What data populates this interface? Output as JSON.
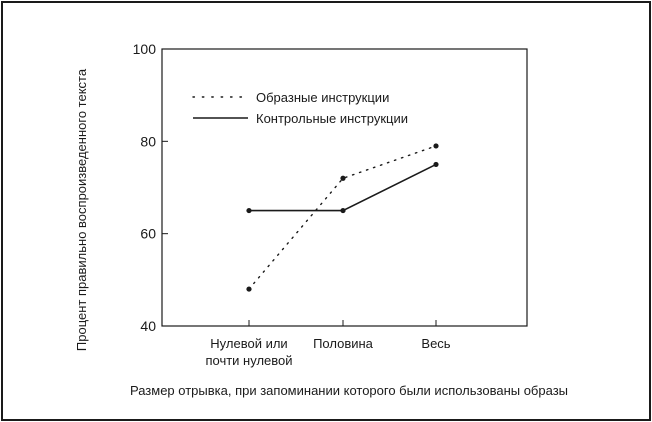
{
  "chart_data": {
    "type": "line",
    "categories": [
      "Нулевой или почти нулевой",
      "Половина",
      "Весь"
    ],
    "category_lines": [
      [
        "Нулевой или",
        "почти нулевой"
      ],
      [
        "Половина"
      ],
      [
        "Весь"
      ]
    ],
    "series": [
      {
        "name": "Образные инструкции",
        "values": [
          48,
          72,
          79
        ],
        "style": "dotted"
      },
      {
        "name": "Контрольные инструкции",
        "values": [
          65,
          65,
          75
        ],
        "style": "solid"
      }
    ],
    "ylim": [
      40,
      100
    ],
    "yticks": [
      40,
      60,
      80,
      100
    ],
    "ylabel": "Процент правильно воспроизведенного текста",
    "xlabel": "Размер отрывка, при запоминании которого были использованы образы",
    "legend_position": "top-left",
    "grid": false,
    "colors": {
      "line": "#1a1a1a",
      "background": "#ffffff"
    }
  }
}
